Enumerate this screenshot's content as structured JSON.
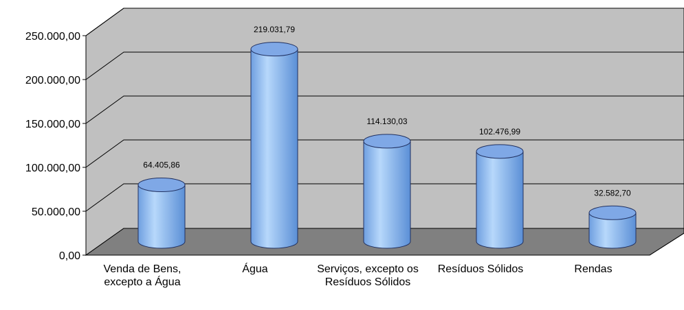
{
  "chart_data": {
    "type": "bar",
    "categories": [
      "Venda de Bens, excepto a Água",
      "Água",
      "Serviços, excepto os Resíduos Sólidos",
      "Resíduos Sólidos",
      "Rendas"
    ],
    "values": [
      64405.86,
      219031.79,
      114130.03,
      102476.99,
      32582.7
    ],
    "value_labels": [
      "64.405,86",
      "219.031,79",
      "114.130,03",
      "102.476,99",
      "32.582,70"
    ],
    "color": "#8fbdf0",
    "ylim": [
      0,
      250000
    ],
    "yticks": [
      {
        "value": 0,
        "label": "0,00"
      },
      {
        "value": 50000,
        "label": "50.000,00"
      },
      {
        "value": 100000,
        "label": "100.000,00"
      },
      {
        "value": 150000,
        "label": "150.000,00"
      },
      {
        "value": 200000,
        "label": "200.000,00"
      },
      {
        "value": 250000,
        "label": "250.000,00"
      }
    ],
    "grid": true
  }
}
